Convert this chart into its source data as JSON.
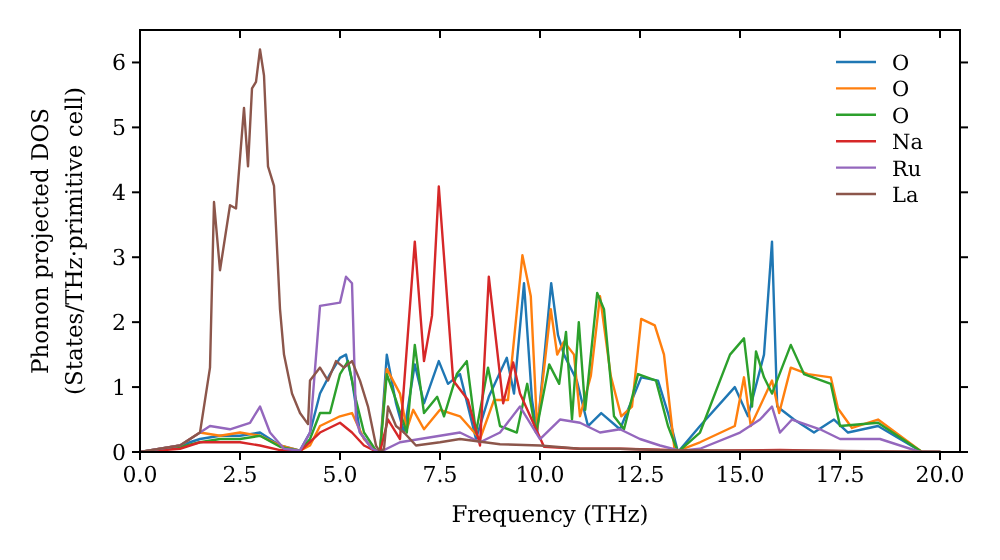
{
  "chart_data": {
    "type": "line",
    "xlabel": "Frequency (THz)",
    "ylabel": "Phonon projected DOS\n(States/THz·primitive cell)",
    "xlim": [
      0,
      20.5
    ],
    "ylim": [
      0,
      6.5
    ],
    "xticks": [
      {
        "value": 0,
        "label": "0.0"
      },
      2.5,
      {
        "value": 5,
        "label": "5.0"
      },
      7.5,
      {
        "value": 10,
        "label": "10.0"
      },
      12.5,
      {
        "value": 15,
        "label": "15.0"
      },
      17.5,
      {
        "value": 20,
        "label": "20.0"
      }
    ],
    "yticks": [
      0,
      1,
      2,
      3,
      4,
      5,
      6
    ],
    "legend": "top right",
    "line_style": "solid",
    "grid": false,
    "series": [
      {
        "name": "O",
        "color": "#1f77b4",
        "x": [
          0,
          1,
          1.5,
          2,
          2.5,
          3,
          3.5,
          4,
          4.25,
          4.5,
          4.75,
          5,
          5.15,
          5.3,
          5.5,
          5.8,
          6,
          6.17,
          6.4,
          6.6,
          6.87,
          7.1,
          7.47,
          7.7,
          8,
          8.4,
          8.72,
          9.17,
          9.35,
          9.6,
          9.8,
          9.93,
          10.28,
          10.45,
          10.6,
          10.92,
          11.2,
          11.53,
          12,
          12.53,
          12.95,
          13.2,
          13.45,
          14,
          14.87,
          15.2,
          15.6,
          15.8,
          15.93,
          16.35,
          16.85,
          17.35,
          17.7,
          18.45,
          19.55,
          20
        ],
        "values": [
          0,
          0.1,
          0.2,
          0.25,
          0.25,
          0.3,
          0.1,
          0.02,
          0.3,
          0.9,
          1.2,
          1.45,
          1.5,
          1.1,
          0.3,
          0.05,
          0,
          1.5,
          0.75,
          0.3,
          1.35,
          0.75,
          1.4,
          1.05,
          1.2,
          0.2,
          0.85,
          1.45,
          0.9,
          2.6,
          0.8,
          0.3,
          2.6,
          1.8,
          1.5,
          1.1,
          0.4,
          0.6,
          0.35,
          1.15,
          1.1,
          0.6,
          0,
          0.4,
          1,
          0.55,
          1.5,
          3.24,
          0.7,
          0.5,
          0.3,
          0.5,
          0.3,
          0.4,
          0,
          0
        ]
      },
      {
        "name": "O",
        "color": "#ff7f0e",
        "x": [
          0,
          1,
          1.5,
          2,
          2.5,
          3,
          3.5,
          4,
          4.25,
          4.5,
          5,
          5.3,
          5.6,
          5.9,
          6,
          6.17,
          6.5,
          6.67,
          6.83,
          7.1,
          7.5,
          8,
          8.5,
          8.85,
          9.2,
          9.56,
          9.77,
          9.93,
          10.27,
          10.43,
          10.6,
          10.85,
          11,
          11.27,
          11.5,
          11.77,
          12.03,
          12.3,
          12.53,
          12.87,
          13.1,
          13.37,
          14,
          14.87,
          15.1,
          15.27,
          15.8,
          15.98,
          16.27,
          16.7,
          17.27,
          17.45,
          17.8,
          18.45,
          19.55,
          20
        ],
        "values": [
          0,
          0.1,
          0.3,
          0.25,
          0.3,
          0.25,
          0.1,
          0.02,
          0.1,
          0.4,
          0.55,
          0.6,
          0.2,
          0.02,
          0,
          1.28,
          0.9,
          0.35,
          0.65,
          0.35,
          0.65,
          0.55,
          0.2,
          0.8,
          0.8,
          3.03,
          2.4,
          0.35,
          2.2,
          1.5,
          1.7,
          1.5,
          0.55,
          1.17,
          2.4,
          1.17,
          0.55,
          0.7,
          2.05,
          1.95,
          1.5,
          0,
          0.15,
          0.4,
          1.15,
          0.4,
          1.1,
          0.6,
          1.3,
          1.2,
          1.15,
          0.67,
          0.37,
          0.5,
          0,
          0
        ]
      },
      {
        "name": "O",
        "color": "#2ca02c",
        "x": [
          0,
          1,
          1.5,
          2,
          2.5,
          3,
          3.5,
          4,
          4.25,
          4.5,
          4.75,
          5,
          5.2,
          5.4,
          5.6,
          5.9,
          6,
          6.17,
          6.4,
          6.67,
          6.87,
          7.1,
          7.43,
          7.6,
          7.92,
          8.17,
          8.4,
          8.7,
          9,
          9.42,
          9.68,
          9.9,
          10.23,
          10.48,
          10.65,
          10.8,
          10.97,
          11.13,
          11.43,
          11.6,
          11.85,
          12.1,
          12.45,
          12.9,
          13.2,
          13.45,
          14,
          14.75,
          15.1,
          15.3,
          15.4,
          15.6,
          15.8,
          16.27,
          16.6,
          17.27,
          17.5,
          18.45,
          19.55,
          20
        ],
        "values": [
          0,
          0.08,
          0.15,
          0.2,
          0.2,
          0.25,
          0.08,
          0.02,
          0.2,
          0.6,
          0.6,
          1.2,
          1.4,
          0.8,
          0.3,
          0.02,
          0,
          1.2,
          0.8,
          0.3,
          1.65,
          0.6,
          0.85,
          0.55,
          1.2,
          1.4,
          0.3,
          1.3,
          0.4,
          0.3,
          1.05,
          0.3,
          1.35,
          1.05,
          1.85,
          0.5,
          2,
          0.65,
          2.45,
          2.2,
          0.55,
          0.35,
          1.2,
          1.1,
          0.4,
          0,
          0.3,
          1.5,
          1.75,
          0.7,
          1.55,
          1.15,
          0.9,
          1.65,
          1.2,
          1.05,
          0.4,
          0.45,
          0,
          0
        ]
      },
      {
        "name": "Na",
        "color": "#d62728",
        "x": [
          0,
          1,
          1.5,
          2.5,
          3,
          3.5,
          4,
          4.5,
          5,
          5.3,
          5.6,
          5.9,
          6,
          6.2,
          6.5,
          6.87,
          7.1,
          7.3,
          7.47,
          7.83,
          8.2,
          8.5,
          8.72,
          9.08,
          9.33,
          9.5,
          10.1,
          11,
          12,
          14,
          16,
          18,
          20
        ],
        "values": [
          0,
          0.05,
          0.15,
          0.15,
          0.1,
          0.03,
          0.01,
          0.3,
          0.45,
          0.3,
          0.1,
          0.01,
          0,
          0.5,
          0.2,
          3.24,
          1.4,
          2.1,
          4.09,
          1.1,
          0.8,
          0.1,
          2.7,
          0.75,
          1.38,
          0.9,
          0.08,
          0.05,
          0.05,
          0.02,
          0.03,
          0.01,
          0
        ]
      },
      {
        "name": "Ru",
        "color": "#9467bd",
        "x": [
          0,
          1,
          1.5,
          1.75,
          2.25,
          2.75,
          3,
          3.25,
          3.6,
          4,
          4.25,
          4.5,
          5,
          5.15,
          5.3,
          5.4,
          5.5,
          5.8,
          6,
          6.5,
          7,
          7.5,
          8,
          8.5,
          9,
          9.5,
          10,
          10.5,
          11,
          11.5,
          12,
          12.5,
          13,
          13.5,
          14,
          15,
          15.5,
          15.8,
          16,
          16.3,
          17,
          17.5,
          18.5,
          19.5,
          20
        ],
        "values": [
          0,
          0.1,
          0.3,
          0.4,
          0.35,
          0.45,
          0.7,
          0.3,
          0.05,
          0.02,
          0.3,
          2.25,
          2.3,
          2.7,
          2.6,
          0.5,
          0.3,
          0.05,
          0,
          0.15,
          0.2,
          0.25,
          0.3,
          0.15,
          0.3,
          0.7,
          0.2,
          0.5,
          0.45,
          0.3,
          0.35,
          0.2,
          0.1,
          0.02,
          0.05,
          0.3,
          0.5,
          0.7,
          0.3,
          0.5,
          0.35,
          0.2,
          0.2,
          0,
          0
        ]
      },
      {
        "name": "La",
        "color": "#8c564b",
        "x": [
          0,
          1,
          1.5,
          1.75,
          1.85,
          2,
          2.25,
          2.4,
          2.6,
          2.7,
          2.8,
          2.9,
          3,
          3.1,
          3.2,
          3.35,
          3.5,
          3.6,
          3.8,
          4,
          4.2,
          4.25,
          4.5,
          4.7,
          4.9,
          5.1,
          5.3,
          5.5,
          5.7,
          5.9,
          6,
          6.1,
          6.2,
          6.4,
          6.6,
          6.9,
          7.5,
          8,
          9,
          10,
          11,
          12,
          13,
          15,
          17,
          20
        ],
        "values": [
          0,
          0.1,
          0.3,
          1.3,
          3.85,
          2.8,
          3.8,
          3.75,
          5.3,
          4.4,
          5.6,
          5.7,
          6.2,
          5.8,
          4.4,
          4.1,
          2.2,
          1.5,
          0.9,
          0.6,
          0.43,
          1.1,
          1.3,
          1.1,
          1.4,
          1.3,
          1.4,
          1.1,
          0.7,
          0.1,
          0,
          0.05,
          0.7,
          0.4,
          0.3,
          0.1,
          0.15,
          0.2,
          0.12,
          0.1,
          0.05,
          0.05,
          0.03,
          0.02,
          0.02,
          0
        ]
      }
    ]
  }
}
